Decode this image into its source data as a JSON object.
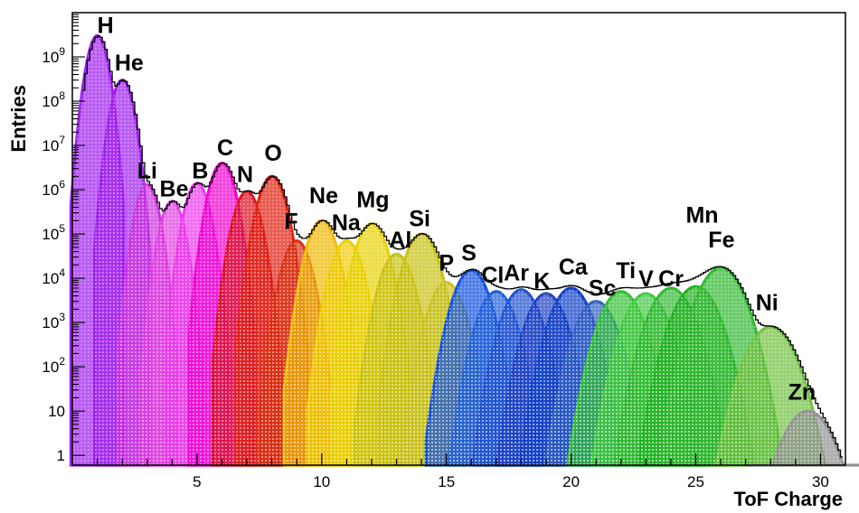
{
  "chart_data": {
    "type": "area",
    "xlabel": "ToF Charge",
    "ylabel": "Entries",
    "xlim": [
      0,
      31
    ],
    "ylim": [
      0.6,
      10000000000
    ],
    "log_y": true,
    "grid": false,
    "x_ticks": [
      5,
      10,
      15,
      20,
      25,
      30
    ],
    "y_ticks": [
      {
        "v": 1,
        "base": "1",
        "exp": ""
      },
      {
        "v": 10,
        "base": "10",
        "exp": ""
      },
      {
        "v": 100,
        "base": "10",
        "exp": "2"
      },
      {
        "v": 1000,
        "base": "10",
        "exp": "3"
      },
      {
        "v": 10000,
        "base": "10",
        "exp": "4"
      },
      {
        "v": 100000,
        "base": "10",
        "exp": "5"
      },
      {
        "v": 1000000,
        "base": "10",
        "exp": "6"
      },
      {
        "v": 10000000,
        "base": "10",
        "exp": "7"
      },
      {
        "v": 100000000,
        "base": "10",
        "exp": "8"
      },
      {
        "v": 1000000000,
        "base": "10",
        "exp": "9"
      }
    ],
    "series": [
      {
        "name": "H",
        "charge": 1,
        "peak": 3000000000,
        "color": "#a020f0"
      },
      {
        "name": "He",
        "charge": 2,
        "peak": 300000000,
        "color": "#a020f0"
      },
      {
        "name": "Li",
        "charge": 3,
        "peak": 1300000,
        "color": "#cc33dd"
      },
      {
        "name": "Be",
        "charge": 4,
        "peak": 550000,
        "color": "#e040e0"
      },
      {
        "name": "B",
        "charge": 5,
        "peak": 1400000,
        "color": "#ee38ee"
      },
      {
        "name": "C",
        "charge": 6,
        "peak": 4000000,
        "color": "#f000d0"
      },
      {
        "name": "N",
        "charge": 7,
        "peak": 900000,
        "color": "#dd1020"
      },
      {
        "name": "O",
        "charge": 8,
        "peak": 2000000,
        "color": "#e02010"
      },
      {
        "name": "F",
        "charge": 9,
        "peak": 70000,
        "color": "#d83010"
      },
      {
        "name": "Ne",
        "charge": 10,
        "peak": 200000,
        "color": "#eeb800"
      },
      {
        "name": "Na",
        "charge": 11,
        "peak": 70000,
        "color": "#eecc00"
      },
      {
        "name": "Mg",
        "charge": 12,
        "peak": 170000,
        "color": "#e8d000"
      },
      {
        "name": "Al",
        "charge": 13,
        "peak": 35000,
        "color": "#c8c010"
      },
      {
        "name": "Si",
        "charge": 14,
        "peak": 100000,
        "color": "#c8c010"
      },
      {
        "name": "P",
        "charge": 15,
        "peak": 8000,
        "color": "#c8c020"
      },
      {
        "name": "S",
        "charge": 16,
        "peak": 15000,
        "color": "#1050e0"
      },
      {
        "name": "Cl",
        "charge": 17,
        "peak": 5000,
        "color": "#2060d8"
      },
      {
        "name": "Ar",
        "charge": 18,
        "peak": 5500,
        "color": "#2050d0"
      },
      {
        "name": "K",
        "charge": 19,
        "peak": 4500,
        "color": "#2040c0"
      },
      {
        "name": "Ca",
        "charge": 20,
        "peak": 6000,
        "color": "#1040c8"
      },
      {
        "name": "Sc",
        "charge": 21,
        "peak": 3000,
        "color": "#3060c0"
      },
      {
        "name": "Ti",
        "charge": 22,
        "peak": 5000,
        "color": "#30c030"
      },
      {
        "name": "V",
        "charge": 23,
        "peak": 4500,
        "color": "#40c840"
      },
      {
        "name": "Cr",
        "charge": 24,
        "peak": 6000,
        "color": "#30b830"
      },
      {
        "name": "Mn",
        "charge": 25,
        "peak": 6500,
        "color": "#20b020"
      },
      {
        "name": "Fe",
        "charge": 26,
        "peak": 17000,
        "color": "#30b830"
      },
      {
        "name": "Ni",
        "charge": 28,
        "peak": 800,
        "color": "#70c040"
      },
      {
        "name": "Zn",
        "charge": 29.5,
        "peak": 10,
        "color": "#909090"
      }
    ],
    "annotations": [
      {
        "text": "H",
        "x": 1.0,
        "y": 3500000000
      },
      {
        "text": "He",
        "x": 1.7,
        "y": 500000000
      },
      {
        "text": "Li",
        "x": 2.6,
        "y": 1800000
      },
      {
        "text": "Be",
        "x": 3.5,
        "y": 700000
      },
      {
        "text": "B",
        "x": 4.8,
        "y": 1800000
      },
      {
        "text": "C",
        "x": 5.8,
        "y": 6000000
      },
      {
        "text": "N",
        "x": 6.6,
        "y": 1500000
      },
      {
        "text": "O",
        "x": 7.7,
        "y": 4500000
      },
      {
        "text": "F",
        "x": 8.5,
        "y": 130000
      },
      {
        "text": "Ne",
        "x": 9.5,
        "y": 500000
      },
      {
        "text": "Na",
        "x": 10.4,
        "y": 120000
      },
      {
        "text": "Mg",
        "x": 11.4,
        "y": 400000
      },
      {
        "text": "Al",
        "x": 12.7,
        "y": 50000
      },
      {
        "text": "Si",
        "x": 13.5,
        "y": 150000
      },
      {
        "text": "P",
        "x": 14.7,
        "y": 15000
      },
      {
        "text": "S",
        "x": 15.6,
        "y": 25000
      },
      {
        "text": "Cl",
        "x": 16.4,
        "y": 8000
      },
      {
        "text": "Ar",
        "x": 17.3,
        "y": 9000
      },
      {
        "text": "K",
        "x": 18.5,
        "y": 5800
      },
      {
        "text": "Ca",
        "x": 19.5,
        "y": 12000
      },
      {
        "text": "Sc",
        "x": 20.7,
        "y": 4000
      },
      {
        "text": "Ti",
        "x": 21.8,
        "y": 10000
      },
      {
        "text": "V",
        "x": 22.7,
        "y": 6500
      },
      {
        "text": "Cr",
        "x": 23.5,
        "y": 6600
      },
      {
        "text": "Mn",
        "x": 24.6,
        "y": 180000
      },
      {
        "text": "Fe",
        "x": 25.5,
        "y": 50000
      },
      {
        "text": "Ni",
        "x": 27.4,
        "y": 1900
      },
      {
        "text": "Zn",
        "x": 28.7,
        "y": 18
      }
    ]
  }
}
